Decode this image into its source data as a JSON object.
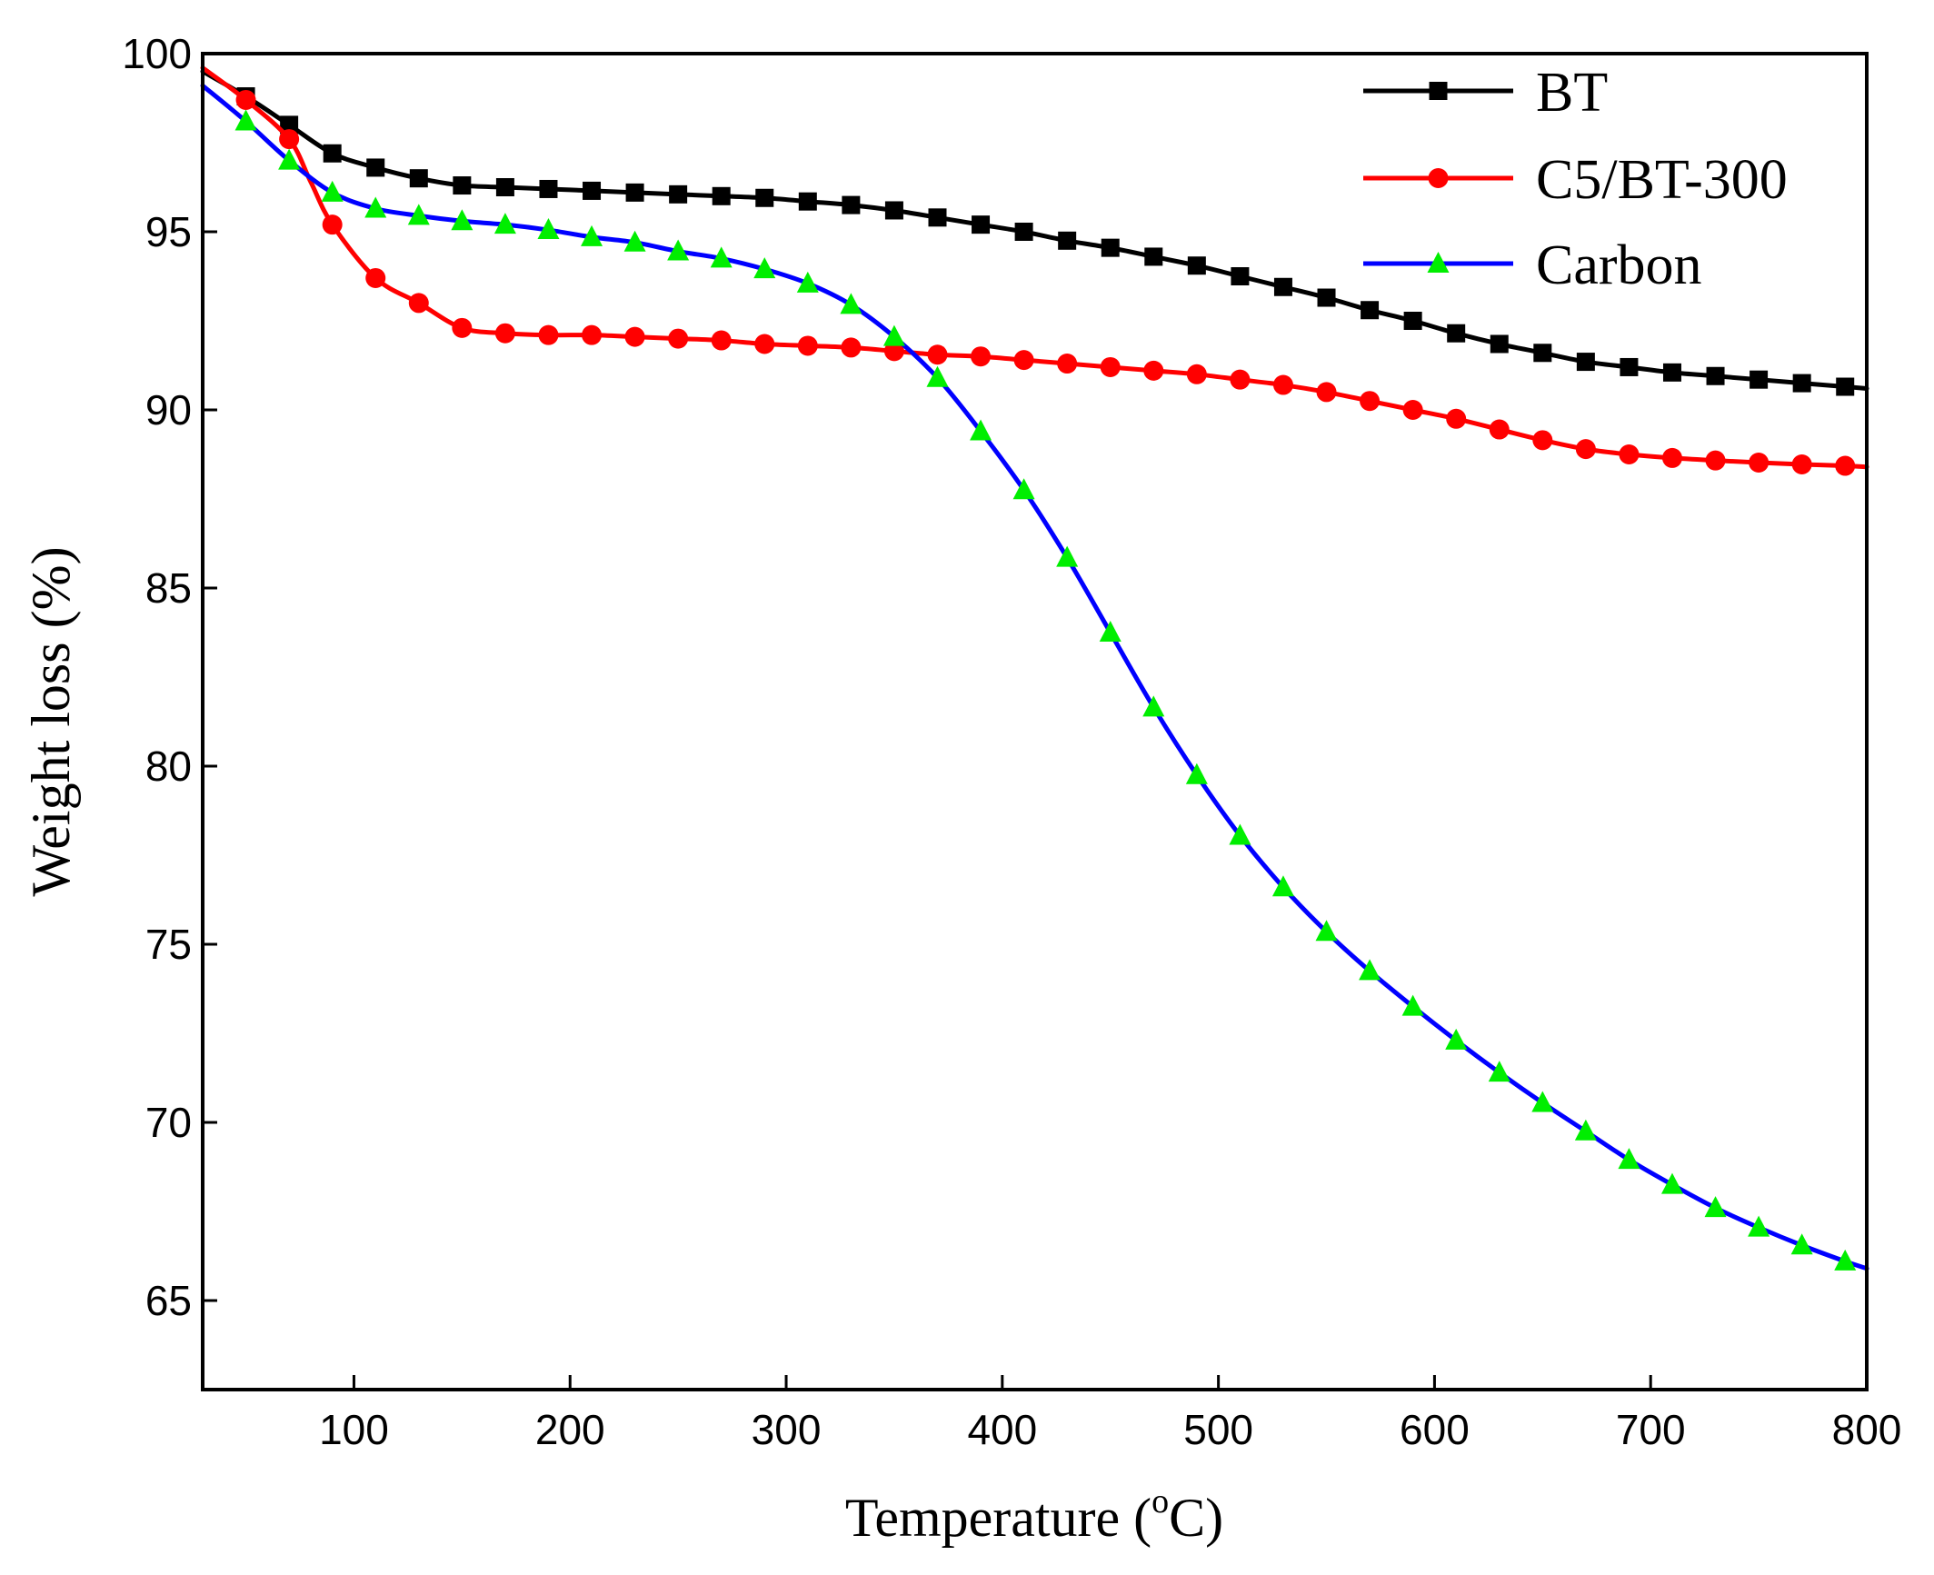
{
  "chart_data": {
    "type": "line",
    "title": "",
    "xlabel": "Temperature (",
    "xlabel_sup": "o",
    "xlabel_tail": "C)",
    "ylabel": "Weight loss (%)",
    "xlim": [
      30,
      800
    ],
    "ylim": [
      62.5,
      100
    ],
    "x_ticks": [
      100,
      200,
      300,
      400,
      500,
      600,
      700,
      800
    ],
    "y_ticks": [
      65,
      70,
      75,
      80,
      85,
      90,
      95,
      100
    ],
    "x_tick_labels": [
      "100",
      "200",
      "300",
      "400",
      "500",
      "600",
      "700",
      "800"
    ],
    "y_tick_labels": [
      "65",
      "70",
      "75",
      "80",
      "85",
      "90",
      "95",
      "100"
    ],
    "grid": false,
    "legend_position": "top-right",
    "series": [
      {
        "name": "BT",
        "color": "#000000",
        "marker": "square",
        "x": [
          30,
          50,
          70,
          90,
          110,
          130,
          150,
          170,
          190,
          210,
          230,
          250,
          270,
          290,
          310,
          330,
          350,
          370,
          390,
          410,
          430,
          450,
          470,
          490,
          510,
          530,
          550,
          570,
          590,
          610,
          630,
          650,
          670,
          690,
          710,
          730,
          750,
          770,
          790,
          800
        ],
        "y": [
          99.5,
          98.8,
          98.0,
          97.2,
          96.8,
          96.5,
          96.3,
          96.25,
          96.2,
          96.15,
          96.1,
          96.05,
          96.0,
          95.95,
          95.85,
          95.75,
          95.6,
          95.4,
          95.2,
          95.0,
          94.75,
          94.55,
          94.3,
          94.05,
          93.75,
          93.45,
          93.15,
          92.8,
          92.5,
          92.15,
          91.85,
          91.6,
          91.35,
          91.2,
          91.05,
          90.95,
          90.85,
          90.75,
          90.65,
          90.6
        ],
        "marker_x": [
          50,
          70,
          90,
          110,
          130,
          150,
          170,
          190,
          210,
          230,
          250,
          270,
          290,
          310,
          330,
          350,
          370,
          390,
          410,
          430,
          450,
          470,
          490,
          510,
          530,
          550,
          570,
          590,
          610,
          630,
          650,
          670,
          690,
          710,
          730,
          750,
          770,
          790
        ]
      },
      {
        "name": "C5/BT-300",
        "color": "#ff0000",
        "marker": "circle",
        "x": [
          30,
          50,
          70,
          80,
          90,
          110,
          130,
          150,
          170,
          190,
          210,
          230,
          250,
          270,
          290,
          310,
          330,
          350,
          370,
          390,
          410,
          430,
          450,
          470,
          490,
          510,
          530,
          550,
          570,
          590,
          610,
          630,
          650,
          670,
          690,
          710,
          730,
          750,
          770,
          790,
          800
        ],
        "y": [
          99.6,
          98.7,
          97.6,
          96.4,
          95.2,
          93.7,
          93.0,
          92.3,
          92.15,
          92.1,
          92.1,
          92.05,
          92.0,
          91.95,
          91.85,
          91.8,
          91.75,
          91.65,
          91.55,
          91.5,
          91.4,
          91.3,
          91.2,
          91.1,
          91.0,
          90.85,
          90.7,
          90.5,
          90.25,
          90.0,
          89.75,
          89.45,
          89.15,
          88.9,
          88.75,
          88.65,
          88.58,
          88.52,
          88.47,
          88.43,
          88.4
        ],
        "marker_x": [
          50,
          70,
          90,
          110,
          130,
          150,
          170,
          190,
          210,
          230,
          250,
          270,
          290,
          310,
          330,
          350,
          370,
          390,
          410,
          430,
          450,
          470,
          490,
          510,
          530,
          550,
          570,
          590,
          610,
          630,
          650,
          670,
          690,
          710,
          730,
          750,
          770,
          790
        ]
      },
      {
        "name": "Carbon",
        "color": "#0000ff",
        "marker_color": "#00ee00",
        "marker": "triangle",
        "x": [
          30,
          50,
          70,
          90,
          110,
          130,
          150,
          170,
          190,
          210,
          230,
          250,
          270,
          290,
          310,
          330,
          350,
          370,
          390,
          410,
          430,
          450,
          470,
          490,
          510,
          530,
          550,
          570,
          590,
          610,
          630,
          650,
          670,
          690,
          710,
          730,
          750,
          770,
          790,
          800
        ],
        "y": [
          99.1,
          98.1,
          97.0,
          96.1,
          95.65,
          95.45,
          95.3,
          95.2,
          95.05,
          94.85,
          94.7,
          94.45,
          94.25,
          93.95,
          93.55,
          92.95,
          92.05,
          90.9,
          89.4,
          87.75,
          85.85,
          83.75,
          81.65,
          79.75,
          78.05,
          76.6,
          75.35,
          74.25,
          73.25,
          72.3,
          71.4,
          70.55,
          69.75,
          68.95,
          68.25,
          67.6,
          67.05,
          66.55,
          66.1,
          65.9
        ],
        "marker_x": [
          50,
          70,
          90,
          110,
          130,
          150,
          170,
          190,
          210,
          230,
          250,
          270,
          290,
          310,
          330,
          350,
          370,
          390,
          410,
          430,
          450,
          470,
          490,
          510,
          530,
          550,
          570,
          590,
          610,
          630,
          650,
          670,
          690,
          710,
          730,
          750,
          770,
          790
        ]
      }
    ]
  }
}
